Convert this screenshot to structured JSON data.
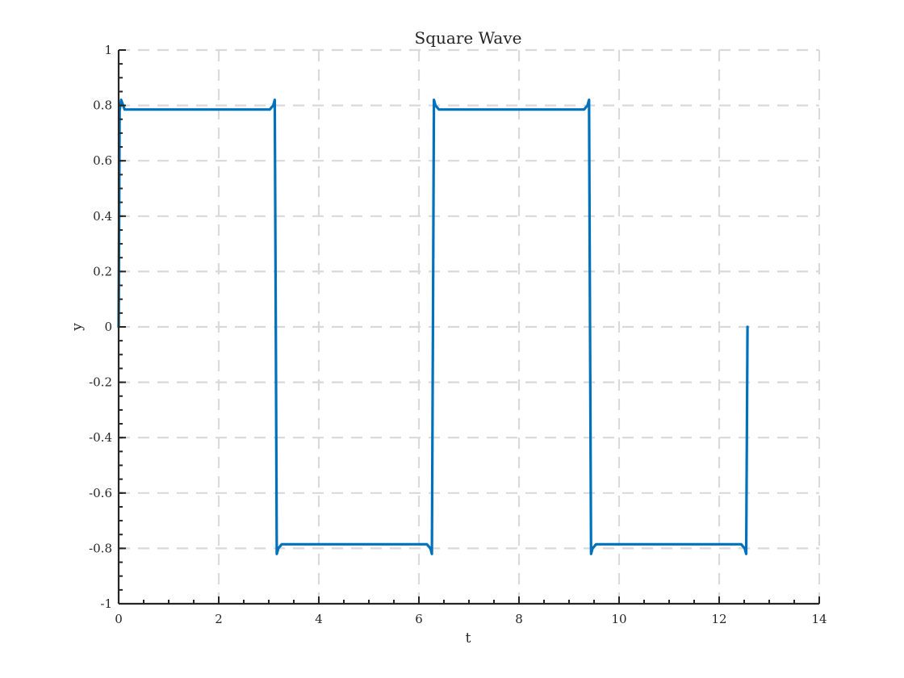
{
  "chart_data": {
    "type": "line",
    "title": "Square Wave",
    "xlabel": "t",
    "ylabel": "y",
    "xlim": [
      0,
      14
    ],
    "ylim": [
      -1,
      1
    ],
    "xticks": [
      0,
      2,
      4,
      6,
      8,
      10,
      12,
      14
    ],
    "xtick_labels": [
      "0",
      "2",
      "4",
      "6",
      "8",
      "10",
      "12",
      "14"
    ],
    "yticks": [
      -1,
      -0.8,
      -0.6,
      -0.4,
      -0.2,
      0,
      0.2,
      0.4,
      0.6,
      0.8,
      1
    ],
    "ytick_labels": [
      "-1",
      "-0.8",
      "-0.6",
      "-0.4",
      "-0.2",
      "0",
      "0.2",
      "0.4",
      "0.6",
      "0.8",
      "1"
    ],
    "grid": true,
    "grid_style": "dashed",
    "line_color": "#0072BD",
    "series": [
      {
        "x": [
          0,
          0.02,
          0.05,
          0.12,
          3.02,
          3.09,
          3.12,
          3.14,
          3.16,
          3.19,
          3.26,
          6.16,
          6.23,
          6.26,
          6.28,
          6.3,
          6.33,
          6.4,
          9.3,
          9.37,
          9.4,
          9.42,
          9.44,
          9.47,
          9.54,
          12.44,
          12.51,
          12.54,
          12.566
        ],
        "y": [
          0,
          0.78,
          0.82,
          0.785,
          0.785,
          0.8,
          0.82,
          0,
          -0.82,
          -0.8,
          -0.785,
          -0.785,
          -0.8,
          -0.82,
          0,
          0.82,
          0.8,
          0.785,
          0.785,
          0.8,
          0.82,
          0,
          -0.82,
          -0.8,
          -0.785,
          -0.785,
          -0.8,
          -0.82,
          0
        ]
      }
    ]
  }
}
